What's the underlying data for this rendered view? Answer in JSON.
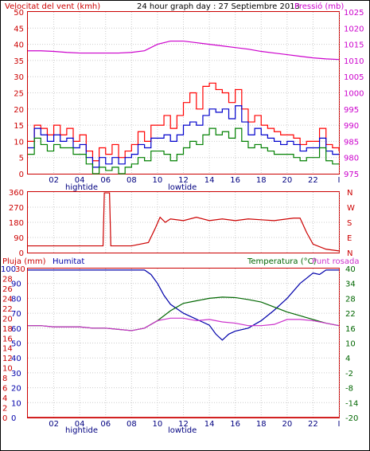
{
  "header": {
    "wind_label": "Velocitat del vent (kmh)",
    "title": "24 hour graph day : 27 Septiembre 2013",
    "pressure_label": "Pressió (mb)"
  },
  "bottom_header": {
    "rain_label": "Pluja (mm)",
    "humidity_label": "Humitat",
    "temp_label": "Temperatura (°C)",
    "dew_label": "Punt rosada"
  },
  "tides": {
    "high": "hightide",
    "low": "lowtide"
  },
  "colors": {
    "wind_gust": "#ff0000",
    "wind_avg": "#0000cc",
    "wind_min": "#008000",
    "pressure": "#cc00cc",
    "direction": "#cc0000",
    "rain": "#cc0000",
    "humidity": "#0000aa",
    "temperature": "#006600",
    "dew_point": "#cc33cc",
    "frame": "#cc0000",
    "grid": "#cccccc"
  },
  "chart_data": [
    {
      "type": "line",
      "panel": "wind-pressure",
      "x_ticks": [
        "02",
        "04",
        "06",
        "08",
        "10",
        "12",
        "14",
        "16",
        "18",
        "20",
        "22",
        "I"
      ],
      "x_range_hours": [
        0,
        24
      ],
      "y_left": {
        "label": "Velocitat del vent (kmh)",
        "ticks": [
          "0",
          "5",
          "10",
          "15",
          "20",
          "25",
          "30",
          "35",
          "40",
          "45",
          "50"
        ],
        "range": [
          0,
          50
        ]
      },
      "y_right": {
        "label": "Pressió (mb)",
        "ticks": [
          "975",
          "980",
          "985",
          "990",
          "995",
          "1000",
          "1005",
          "1010",
          "1015",
          "1020",
          "1025"
        ],
        "range": [
          975,
          1025
        ]
      },
      "series": [
        {
          "name": "gust",
          "axis": "left",
          "x": [
            0,
            0.5,
            1,
            1.5,
            2,
            2.5,
            3,
            3.5,
            4,
            4.5,
            5,
            5.5,
            6,
            6.5,
            7,
            7.5,
            8,
            8.5,
            9,
            9.5,
            10,
            10.5,
            11,
            11.5,
            12,
            12.5,
            13,
            13.5,
            14,
            14.5,
            15,
            15.5,
            16,
            16.5,
            17,
            17.5,
            18,
            18.5,
            19,
            19.5,
            20,
            20.5,
            21,
            21.5,
            22,
            22.5,
            23,
            23.5,
            24
          ],
          "y": [
            10,
            15,
            14,
            12,
            15,
            12,
            14,
            10,
            12,
            7,
            4,
            8,
            6,
            9,
            5,
            7,
            9,
            13,
            10,
            15,
            15,
            18,
            14,
            18,
            22,
            25,
            20,
            27,
            28,
            26,
            25,
            22,
            26,
            20,
            16,
            18,
            15,
            14,
            13,
            12,
            12,
            11,
            9,
            10,
            10,
            14,
            9,
            8,
            7
          ]
        },
        {
          "name": "average",
          "axis": "left",
          "x": [
            0,
            0.5,
            1,
            1.5,
            2,
            2.5,
            3,
            3.5,
            4,
            4.5,
            5,
            5.5,
            6,
            6.5,
            7,
            7.5,
            8,
            8.5,
            9,
            9.5,
            10,
            10.5,
            11,
            11.5,
            12,
            12.5,
            13,
            13.5,
            14,
            14.5,
            15,
            15.5,
            16,
            16.5,
            17,
            17.5,
            18,
            18.5,
            19,
            19.5,
            20,
            20.5,
            21,
            21.5,
            22,
            22.5,
            23,
            23.5,
            24
          ],
          "y": [
            8,
            14,
            12,
            10,
            12,
            10,
            11,
            8,
            9,
            5,
            2,
            5,
            3,
            5,
            3,
            5,
            6,
            9,
            8,
            11,
            11,
            12,
            10,
            12,
            15,
            16,
            15,
            18,
            20,
            19,
            20,
            17,
            21,
            16,
            12,
            14,
            12,
            11,
            10,
            9,
            10,
            9,
            7,
            8,
            8,
            11,
            7,
            6,
            6
          ]
        },
        {
          "name": "minimum",
          "axis": "left",
          "x": [
            0,
            0.5,
            1,
            1.5,
            2,
            2.5,
            3,
            3.5,
            4,
            4.5,
            5,
            5.5,
            6,
            6.5,
            7,
            7.5,
            8,
            8.5,
            9,
            9.5,
            10,
            10.5,
            11,
            11.5,
            12,
            12.5,
            13,
            13.5,
            14,
            14.5,
            15,
            15.5,
            16,
            16.5,
            17,
            17.5,
            18,
            18.5,
            19,
            19.5,
            20,
            20.5,
            21,
            21.5,
            22,
            22.5,
            23,
            23.5,
            24
          ],
          "y": [
            6,
            11,
            9,
            7,
            9,
            8,
            8,
            6,
            6,
            3,
            0,
            2,
            1,
            2,
            0,
            2,
            3,
            5,
            4,
            7,
            7,
            6,
            4,
            6,
            8,
            10,
            9,
            12,
            14,
            12,
            13,
            11,
            14,
            10,
            8,
            9,
            8,
            7,
            6,
            6,
            6,
            5,
            4,
            5,
            5,
            8,
            4,
            3,
            3
          ]
        },
        {
          "name": "pressure",
          "axis": "right",
          "x": [
            0,
            1,
            2,
            3,
            4,
            5,
            6,
            7,
            8,
            9,
            10,
            11,
            12,
            13,
            14,
            15,
            16,
            17,
            18,
            19,
            20,
            21,
            22,
            23,
            24
          ],
          "y": [
            1013,
            1013,
            1012.8,
            1012.5,
            1012.3,
            1012.3,
            1012.3,
            1012.3,
            1012.5,
            1013,
            1015,
            1016,
            1016,
            1015.5,
            1015,
            1014.5,
            1014,
            1013.5,
            1012.8,
            1012.3,
            1011.8,
            1011.3,
            1010.8,
            1010.5,
            1010.3
          ]
        }
      ]
    },
    {
      "type": "line",
      "panel": "wind-direction",
      "y_left": {
        "ticks": [
          "0",
          "90",
          "180",
          "270",
          "360"
        ],
        "range": [
          0,
          360
        ]
      },
      "y_right": {
        "ticks": [
          "N",
          "E",
          "S",
          "W",
          "N"
        ]
      },
      "series": [
        {
          "name": "direction",
          "x": [
            0,
            1,
            2,
            3,
            4,
            5,
            5.8,
            5.9,
            6.3,
            6.4,
            7,
            8,
            9.3,
            9.8,
            10.2,
            10.6,
            11,
            12,
            13,
            14,
            15,
            16,
            17,
            18,
            19,
            20,
            20.5,
            21,
            21.5,
            22,
            23,
            24
          ],
          "y": [
            40,
            40,
            40,
            40,
            40,
            40,
            40,
            355,
            355,
            40,
            40,
            40,
            60,
            140,
            210,
            180,
            200,
            190,
            210,
            190,
            200,
            190,
            200,
            195,
            190,
            200,
            205,
            205,
            120,
            50,
            20,
            10
          ]
        }
      ]
    },
    {
      "type": "line",
      "panel": "temp-humidity-rain",
      "x_ticks": [
        "02",
        "04",
        "06",
        "08",
        "10",
        "12",
        "14",
        "16",
        "18",
        "20",
        "22",
        "I"
      ],
      "y_left_humidity": {
        "ticks": [
          "0",
          "10",
          "20",
          "30",
          "40",
          "50",
          "60",
          "70",
          "80",
          "90",
          "100"
        ],
        "range": [
          0,
          100
        ]
      },
      "y_left_rain": {
        "ticks": [
          "0",
          "2",
          "4",
          "6",
          "8",
          "10",
          "12",
          "14",
          "16",
          "18",
          "20",
          "22",
          "24",
          "26",
          "28",
          "30"
        ],
        "range": [
          0,
          30
        ]
      },
      "y_right": {
        "label": "Temperatura (°C)",
        "ticks": [
          "-20",
          "-14",
          "-8",
          "-2",
          "4",
          "10",
          "16",
          "22",
          "28",
          "34",
          "40"
        ],
        "range": [
          -20,
          40
        ]
      },
      "series": [
        {
          "name": "humidity",
          "axis": "humidity",
          "x": [
            0,
            1,
            2,
            3,
            4,
            5,
            6,
            7,
            8,
            9,
            9.5,
            10,
            10.5,
            11,
            12,
            13,
            14,
            14.5,
            15,
            15.5,
            16,
            17,
            18,
            19,
            20,
            21,
            22,
            22.5,
            23,
            24
          ],
          "y": [
            99,
            99,
            99,
            99,
            99,
            99,
            99,
            99,
            99,
            99,
            96,
            90,
            82,
            76,
            70,
            66,
            62,
            56,
            52,
            56,
            58,
            60,
            65,
            72,
            80,
            90,
            97,
            96,
            99,
            99
          ]
        },
        {
          "name": "temperature",
          "axis": "right",
          "x": [
            0,
            1,
            2,
            3,
            4,
            5,
            6,
            7,
            8,
            9,
            10,
            11,
            12,
            13,
            14,
            15,
            16,
            17,
            18,
            19,
            20,
            21,
            22,
            23,
            24
          ],
          "y": [
            17,
            17,
            16.5,
            16.5,
            16.5,
            16,
            16,
            15.5,
            15,
            16,
            19,
            23,
            26,
            27,
            28,
            28.5,
            28.3,
            27.5,
            26.5,
            24.5,
            22.5,
            21,
            19.5,
            18,
            17
          ]
        },
        {
          "name": "dew_point",
          "axis": "right",
          "x": [
            0,
            1,
            2,
            3,
            4,
            5,
            6,
            7,
            8,
            9,
            10,
            11,
            12,
            13,
            14,
            15,
            16,
            17,
            18,
            19,
            20,
            21,
            22,
            23,
            24
          ],
          "y": [
            17,
            17,
            16.5,
            16.5,
            16.5,
            16,
            16,
            15.5,
            15,
            16,
            19,
            20,
            20,
            19,
            19.5,
            18.5,
            18,
            17,
            17,
            17.5,
            19.5,
            19.5,
            19,
            18,
            17
          ]
        },
        {
          "name": "rain",
          "axis": "rain",
          "x": [
            0,
            24
          ],
          "y": [
            0,
            0
          ]
        }
      ]
    }
  ]
}
